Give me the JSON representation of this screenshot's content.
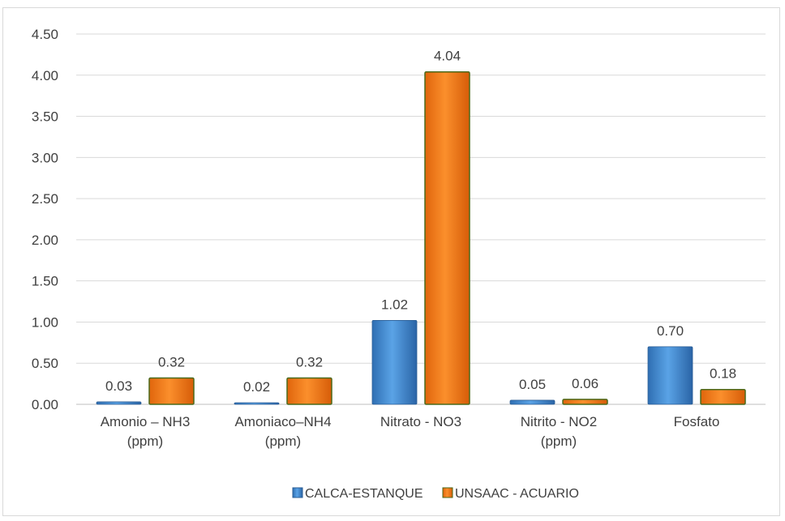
{
  "chart_data": {
    "type": "bar",
    "categories": [
      [
        "Amonio – NH3",
        "(ppm)"
      ],
      [
        "Amoniaco–NH4",
        "(ppm)"
      ],
      [
        "Nitrato - NO3"
      ],
      [
        "Nitrito - NO2",
        "(ppm)"
      ],
      [
        "Fosfato"
      ]
    ],
    "series": [
      {
        "name": "CALCA-ESTANQUE",
        "values": [
          0.03,
          0.02,
          1.02,
          0.05,
          0.7
        ],
        "labels": [
          "0.03",
          "0.02",
          "1.02",
          "0.05",
          "0.70"
        ],
        "color": "#4a8fd3"
      },
      {
        "name": "UNSAAC - ACUARIO",
        "values": [
          0.32,
          0.32,
          4.04,
          0.06,
          0.18
        ],
        "labels": [
          "0.32",
          "0.32",
          "4.04",
          "0.06",
          "0.18"
        ],
        "color": "#f07d1e"
      }
    ],
    "ylim": [
      0,
      4.5
    ],
    "yticks": [
      "0.00",
      "0.50",
      "1.00",
      "1.50",
      "2.00",
      "2.50",
      "3.00",
      "3.50",
      "4.00",
      "4.50"
    ],
    "grid": true,
    "legend_position": "bottom",
    "title": "",
    "xlabel": "",
    "ylabel": ""
  }
}
